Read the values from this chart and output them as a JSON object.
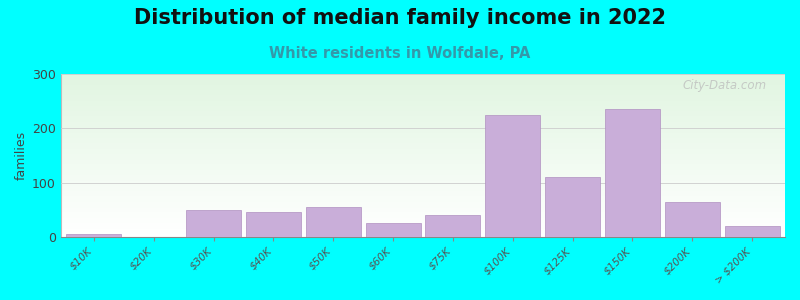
{
  "title": "Distribution of median family income in 2022",
  "subtitle": "White residents in Wolfdale, PA",
  "ylabel": "families",
  "background_color": "#00FFFF",
  "bar_color": "#c9aed9",
  "bar_edge_color": "#b090c0",
  "title_fontsize": 15,
  "subtitle_fontsize": 10.5,
  "subtitle_color": "#3399aa",
  "tick_labels": [
    "$10K",
    "$20K",
    "$30K",
    "$40K",
    "$50K",
    "$60K",
    "$75K",
    "$100K",
    "$125K",
    "$150K",
    "$200K",
    "> $200K"
  ],
  "bin_edges": [
    0,
    1,
    2,
    3,
    4,
    5,
    6,
    7,
    8,
    9,
    10,
    11,
    12
  ],
  "values": [
    5,
    0,
    50,
    45,
    55,
    25,
    40,
    225,
    110,
    235,
    65,
    20
  ],
  "ylim": [
    0,
    300
  ],
  "yticks": [
    0,
    100,
    200,
    300
  ],
  "watermark": "City-Data.com",
  "grid_color": "#cccccc"
}
